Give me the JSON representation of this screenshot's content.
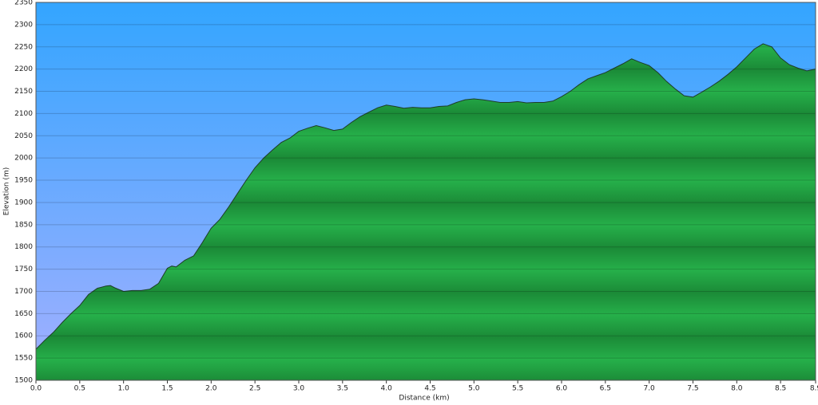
{
  "chart_data": {
    "type": "area",
    "xlabel": "Distance   (km)",
    "ylabel": "Elevation (m)",
    "color": "#22a845",
    "line_color": "#1f3d2a",
    "x": [
      0.0,
      0.1,
      0.2,
      0.3,
      0.4,
      0.5,
      0.6,
      0.7,
      0.8,
      0.85,
      0.9,
      1.0,
      1.1,
      1.2,
      1.3,
      1.4,
      1.5,
      1.55,
      1.6,
      1.7,
      1.8,
      1.9,
      2.0,
      2.1,
      2.2,
      2.3,
      2.4,
      2.5,
      2.6,
      2.7,
      2.8,
      2.9,
      3.0,
      3.1,
      3.2,
      3.3,
      3.4,
      3.5,
      3.6,
      3.7,
      3.8,
      3.9,
      4.0,
      4.1,
      4.2,
      4.3,
      4.4,
      4.5,
      4.6,
      4.7,
      4.8,
      4.9,
      5.0,
      5.1,
      5.2,
      5.3,
      5.4,
      5.5,
      5.6,
      5.7,
      5.8,
      5.9,
      6.0,
      6.1,
      6.2,
      6.3,
      6.4,
      6.5,
      6.6,
      6.7,
      6.8,
      6.9,
      7.0,
      7.1,
      7.2,
      7.3,
      7.4,
      7.5,
      7.6,
      7.7,
      7.8,
      7.9,
      8.0,
      8.1,
      8.2,
      8.3,
      8.4,
      8.5,
      8.6,
      8.7,
      8.8,
      8.9
    ],
    "values": [
      1570,
      1590,
      1608,
      1630,
      1650,
      1668,
      1693,
      1707,
      1712,
      1713,
      1708,
      1700,
      1702,
      1702,
      1705,
      1718,
      1752,
      1757,
      1755,
      1770,
      1780,
      1810,
      1842,
      1862,
      1890,
      1920,
      1950,
      1978,
      2000,
      2018,
      2035,
      2045,
      2060,
      2067,
      2073,
      2068,
      2062,
      2065,
      2080,
      2093,
      2103,
      2113,
      2119,
      2116,
      2112,
      2114,
      2113,
      2113,
      2116,
      2117,
      2125,
      2131,
      2133,
      2131,
      2128,
      2125,
      2125,
      2127,
      2124,
      2125,
      2125,
      2128,
      2138,
      2150,
      2165,
      2178,
      2185,
      2192,
      2202,
      2212,
      2223,
      2215,
      2208,
      2192,
      2172,
      2155,
      2140,
      2137,
      2148,
      2160,
      2173,
      2188,
      2205,
      2225,
      2245,
      2257,
      2250,
      2225,
      2210,
      2202,
      2196,
      2200
    ],
    "xlim": [
      0,
      8.9
    ],
    "ylim": [
      1500,
      2350
    ],
    "xticks": [
      {
        "value": 0,
        "label": "0.0"
      },
      0.5,
      {
        "value": 1,
        "label": "1.0"
      },
      1.5,
      {
        "value": 2,
        "label": "2.0"
      },
      2.5,
      {
        "value": 3,
        "label": "3.0"
      },
      3.5,
      {
        "value": 4,
        "label": "4.0"
      },
      4.5,
      {
        "value": 5,
        "label": "5.0"
      },
      5.5,
      {
        "value": 6,
        "label": "6.0"
      },
      6.5,
      {
        "value": 7,
        "label": "7.0"
      },
      7.5,
      {
        "value": 8,
        "label": "8.0"
      },
      8.5,
      8.9
    ],
    "yticks": [
      1500,
      1550,
      1600,
      1650,
      1700,
      1750,
      1800,
      1850,
      1900,
      1950,
      2000,
      2050,
      2100,
      2150,
      2200,
      2250,
      2300,
      2350
    ],
    "grid": true
  }
}
